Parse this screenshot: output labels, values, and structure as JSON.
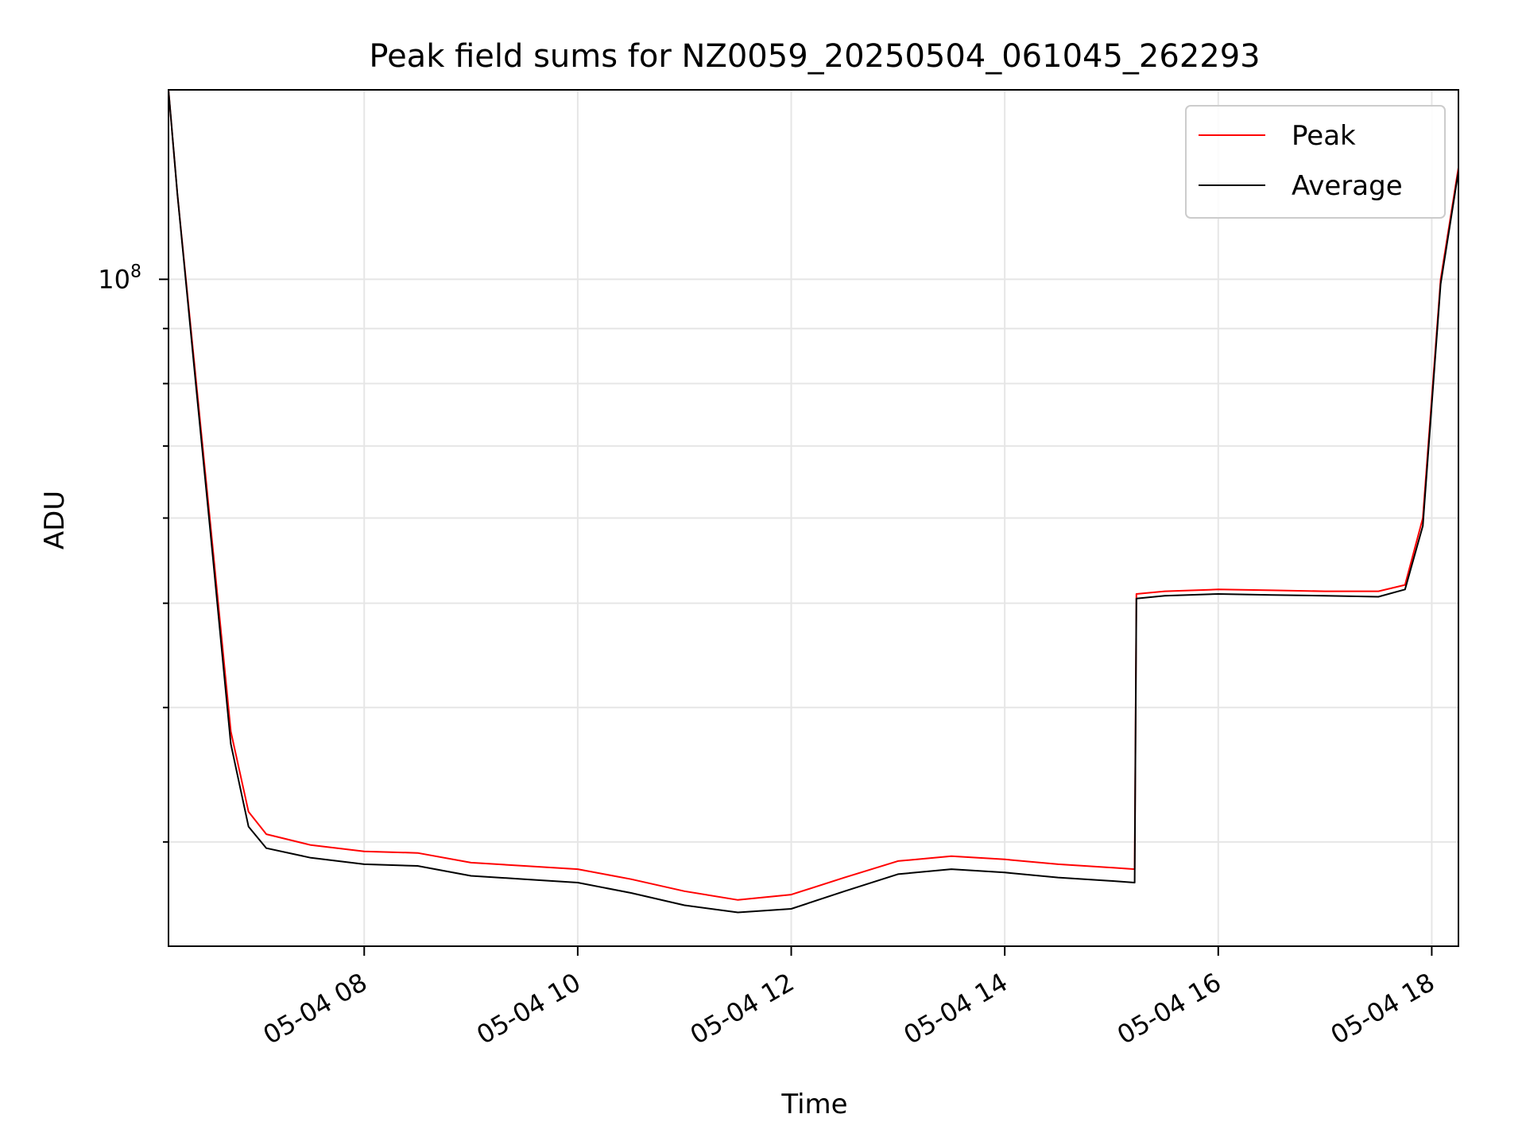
{
  "chart_data": {
    "type": "line",
    "title": "Peak field sums for NZ0059_20250504_061045_262293",
    "xlabel": "Time",
    "ylabel": "ADU",
    "y_scale": "log",
    "ylim": [
      24000000,
      150000000
    ],
    "xlim": [
      "2025-05-04 06:10",
      "2025-05-04 18:15"
    ],
    "x_ticks": [
      {
        "value": "2025-05-04 08:00",
        "label": "05-04 08"
      },
      {
        "value": "2025-05-04 10:00",
        "label": "05-04 10"
      },
      {
        "value": "2025-05-04 12:00",
        "label": "05-04 12"
      },
      {
        "value": "2025-05-04 14:00",
        "label": "05-04 14"
      },
      {
        "value": "2025-05-04 16:00",
        "label": "05-04 16"
      },
      {
        "value": "2025-05-04 18:00",
        "label": "05-04 18"
      }
    ],
    "y_ticks": [
      {
        "value": 100000000,
        "label_base": "10",
        "label_exp": "8"
      }
    ],
    "y_minor_ticks": [
      30000000,
      40000000,
      50000000,
      60000000,
      70000000,
      80000000,
      90000000
    ],
    "grid": true,
    "legend_position": "top-right",
    "series": [
      {
        "name": "Peak",
        "color": "#ff0000",
        "x": [
          "2025-05-04 06:10",
          "2025-05-04 06:15",
          "2025-05-04 06:25",
          "2025-05-04 06:35",
          "2025-05-04 06:45",
          "2025-05-04 06:55",
          "2025-05-04 07:05",
          "2025-05-04 07:30",
          "2025-05-04 08:00",
          "2025-05-04 08:30",
          "2025-05-04 09:00",
          "2025-05-04 09:30",
          "2025-05-04 10:00",
          "2025-05-04 10:30",
          "2025-05-04 11:00",
          "2025-05-04 11:30",
          "2025-05-04 12:00",
          "2025-05-04 12:30",
          "2025-05-04 13:00",
          "2025-05-04 13:30",
          "2025-05-04 14:00",
          "2025-05-04 14:30",
          "2025-05-04 15:00",
          "2025-05-04 15:13",
          "2025-05-04 15:14",
          "2025-05-04 15:30",
          "2025-05-04 16:00",
          "2025-05-04 16:30",
          "2025-05-04 17:00",
          "2025-05-04 17:30",
          "2025-05-04 17:45",
          "2025-05-04 17:55",
          "2025-05-04 18:05",
          "2025-05-04 18:15"
        ],
        "y": [
          150000000,
          120000000,
          82000000,
          56000000,
          38000000,
          32000000,
          30500000,
          29800000,
          29400000,
          29300000,
          28700000,
          28500000,
          28300000,
          27700000,
          27000000,
          26500000,
          26800000,
          27800000,
          28800000,
          29100000,
          28900000,
          28600000,
          28400000,
          28300000,
          51000000,
          51300000,
          51500000,
          51400000,
          51300000,
          51300000,
          52000000,
          60000000,
          100000000,
          127000000
        ]
      },
      {
        "name": "Average",
        "color": "#000000",
        "x": [
          "2025-05-04 06:10",
          "2025-05-04 06:15",
          "2025-05-04 06:25",
          "2025-05-04 06:35",
          "2025-05-04 06:45",
          "2025-05-04 06:55",
          "2025-05-04 07:05",
          "2025-05-04 07:30",
          "2025-05-04 08:00",
          "2025-05-04 08:30",
          "2025-05-04 09:00",
          "2025-05-04 09:30",
          "2025-05-04 10:00",
          "2025-05-04 10:30",
          "2025-05-04 11:00",
          "2025-05-04 11:30",
          "2025-05-04 12:00",
          "2025-05-04 12:30",
          "2025-05-04 13:00",
          "2025-05-04 13:30",
          "2025-05-04 14:00",
          "2025-05-04 14:30",
          "2025-05-04 15:00",
          "2025-05-04 15:13",
          "2025-05-04 15:14",
          "2025-05-04 15:30",
          "2025-05-04 16:00",
          "2025-05-04 16:30",
          "2025-05-04 17:00",
          "2025-05-04 17:30",
          "2025-05-04 17:45",
          "2025-05-04 17:55",
          "2025-05-04 18:05",
          "2025-05-04 18:15"
        ],
        "y": [
          150000000,
          120000000,
          81000000,
          55000000,
          37000000,
          31000000,
          29600000,
          29000000,
          28600000,
          28500000,
          27900000,
          27700000,
          27500000,
          26900000,
          26200000,
          25800000,
          26000000,
          27000000,
          28000000,
          28300000,
          28100000,
          27800000,
          27600000,
          27500000,
          50500000,
          50800000,
          51000000,
          50900000,
          50800000,
          50700000,
          51500000,
          59000000,
          99000000,
          126000000
        ]
      }
    ]
  }
}
